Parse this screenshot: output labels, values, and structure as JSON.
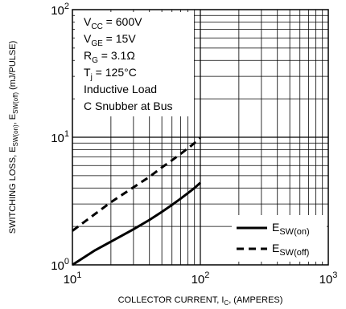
{
  "chart_data": {
    "type": "line",
    "title": "",
    "xlabel": {
      "main": "COLLECTOR CURRENT, I",
      "sub": "C",
      "tail": ", (AMPERES)"
    },
    "ylabel": {
      "p1": "SWITCHING LOSS, E",
      "s1": "SW(on)",
      "p2": ", E",
      "s2": "SW(off)",
      "p3": " (mJ/PULSE)"
    },
    "x_scale": "log",
    "y_scale": "log",
    "xlim": [
      10,
      1000
    ],
    "ylim": [
      1,
      100
    ],
    "x_ticks": [
      {
        "value": 10,
        "base": "10",
        "exp": "1"
      },
      {
        "value": 100,
        "base": "10",
        "exp": "2"
      },
      {
        "value": 1000,
        "base": "10",
        "exp": "3"
      }
    ],
    "y_ticks": [
      {
        "value": 1,
        "base": "10",
        "exp": "0"
      },
      {
        "value": 10,
        "base": "10",
        "exp": "1"
      },
      {
        "value": 100,
        "base": "10",
        "exp": "2"
      }
    ],
    "grid": true,
    "annotations": [
      {
        "main": "V",
        "sub": "CC",
        "tail": " = 600V"
      },
      {
        "main": "V",
        "sub": "GE",
        "tail": " = 15V"
      },
      {
        "main": "R",
        "sub": "G",
        "tail": " = 3.1Ω"
      },
      {
        "main": "T",
        "sub": "j",
        "tail": " = 125°C"
      },
      {
        "main": "Inductive Load",
        "sub": "",
        "tail": ""
      },
      {
        "main": "C Snubber at Bus",
        "sub": "",
        "tail": ""
      }
    ],
    "legend_position": "bottom-right",
    "series": [
      {
        "name": {
          "main": "E",
          "sub": "SW(on)"
        },
        "style": "solid",
        "x": [
          10,
          15,
          20,
          30,
          40,
          50,
          60,
          70,
          80,
          90,
          100
        ],
        "y": [
          1.0,
          1.3,
          1.52,
          1.9,
          2.25,
          2.6,
          2.95,
          3.3,
          3.65,
          4.0,
          4.4
        ]
      },
      {
        "name": {
          "main": "E",
          "sub": "SW(off)"
        },
        "style": "dashed",
        "x": [
          10,
          15,
          20,
          30,
          40,
          50,
          60,
          70,
          80,
          90,
          100
        ],
        "y": [
          1.85,
          2.5,
          3.1,
          4.05,
          4.9,
          5.8,
          6.6,
          7.4,
          8.2,
          9.0,
          9.9
        ]
      }
    ]
  }
}
